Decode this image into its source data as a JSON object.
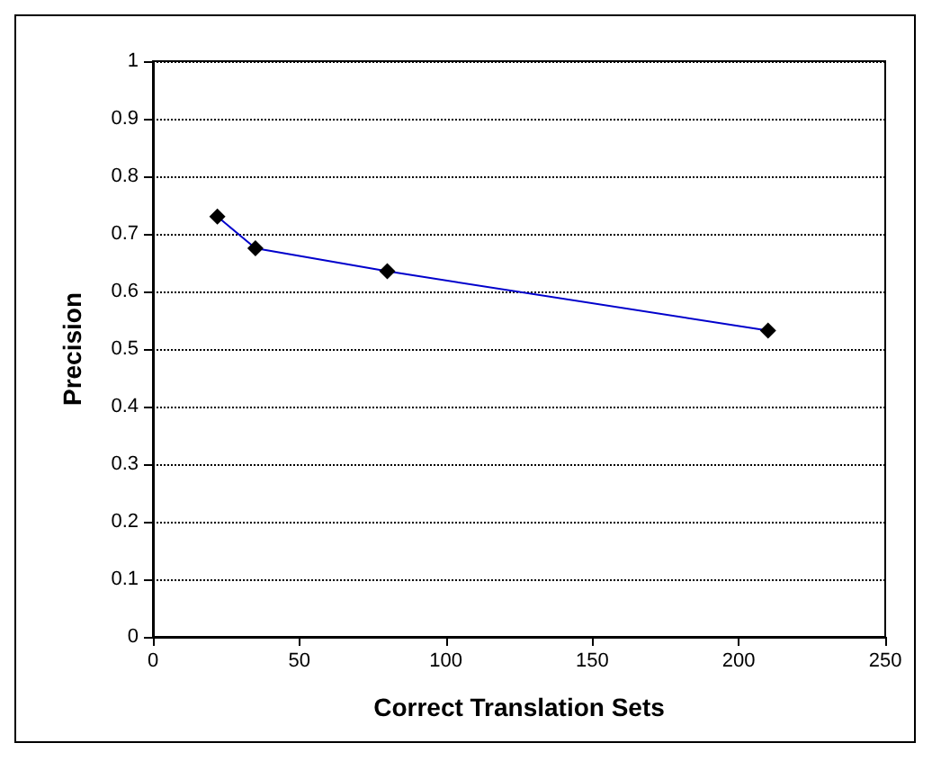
{
  "chart_data": {
    "type": "line",
    "xlabel": "Correct Translation Sets",
    "ylabel": "Precision",
    "x": [
      22,
      35,
      80,
      210
    ],
    "series": [
      {
        "color": "#0000cc",
        "values": [
          0.73,
          0.675,
          0.635,
          0.532
        ]
      }
    ],
    "xlim": [
      0,
      250
    ],
    "xticks": [
      0,
      50,
      100,
      150,
      200,
      250
    ],
    "ylim": [
      0,
      1
    ],
    "yticks": [
      0,
      0.1,
      0.2,
      0.3,
      0.4,
      0.5,
      0.6,
      0.7,
      0.8,
      0.9,
      1
    ],
    "grid": "y",
    "marker": "diamond",
    "line_style": "solid"
  }
}
